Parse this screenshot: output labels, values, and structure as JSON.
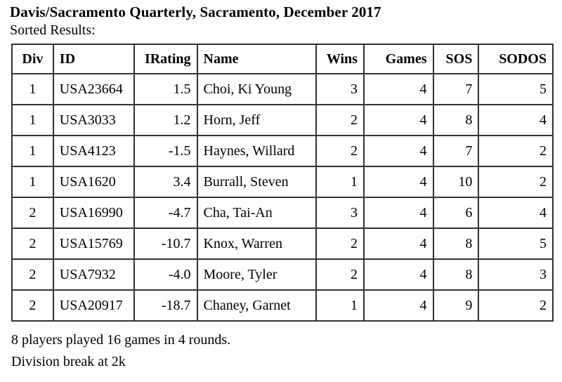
{
  "page": {
    "title": "Davis/Sacramento Quarterly, Sacramento, December 2017",
    "subtitle": "Sorted Results:",
    "summary": "8 players played 16 games in 4 rounds.",
    "division_break": "Division break at 2k"
  },
  "table": {
    "columns": [
      {
        "label": "Div",
        "align": "center"
      },
      {
        "label": "ID",
        "align": "left"
      },
      {
        "label": "IRating",
        "align": "right"
      },
      {
        "label": "Name",
        "align": "left"
      },
      {
        "label": "Wins",
        "align": "right"
      },
      {
        "label": "Games",
        "align": "right"
      },
      {
        "label": "SOS",
        "align": "right"
      },
      {
        "label": "SODOS",
        "align": "right"
      }
    ],
    "rows": [
      [
        "1",
        "USA23664",
        "1.5",
        "Choi, Ki Young",
        "3",
        "4",
        "7",
        "5"
      ],
      [
        "1",
        "USA3033",
        "1.2",
        "Horn, Jeff",
        "2",
        "4",
        "8",
        "4"
      ],
      [
        "1",
        "USA4123",
        "-1.5",
        "Haynes, Willard",
        "2",
        "4",
        "7",
        "2"
      ],
      [
        "1",
        "USA1620",
        "3.4",
        "Burrall, Steven",
        "1",
        "4",
        "10",
        "2"
      ],
      [
        "2",
        "USA16990",
        "-4.7",
        "Cha, Tai-An",
        "3",
        "4",
        "6",
        "4"
      ],
      [
        "2",
        "USA15769",
        "-10.7",
        "Knox, Warren",
        "2",
        "4",
        "8",
        "5"
      ],
      [
        "2",
        "USA7932",
        "-4.0",
        "Moore, Tyler",
        "2",
        "4",
        "8",
        "3"
      ],
      [
        "2",
        "USA20917",
        "-18.7",
        "Chaney, Garnet",
        "1",
        "4",
        "9",
        "2"
      ]
    ]
  },
  "colors": {
    "text": "#000000",
    "border": "#333333",
    "background": "#ffffff"
  }
}
